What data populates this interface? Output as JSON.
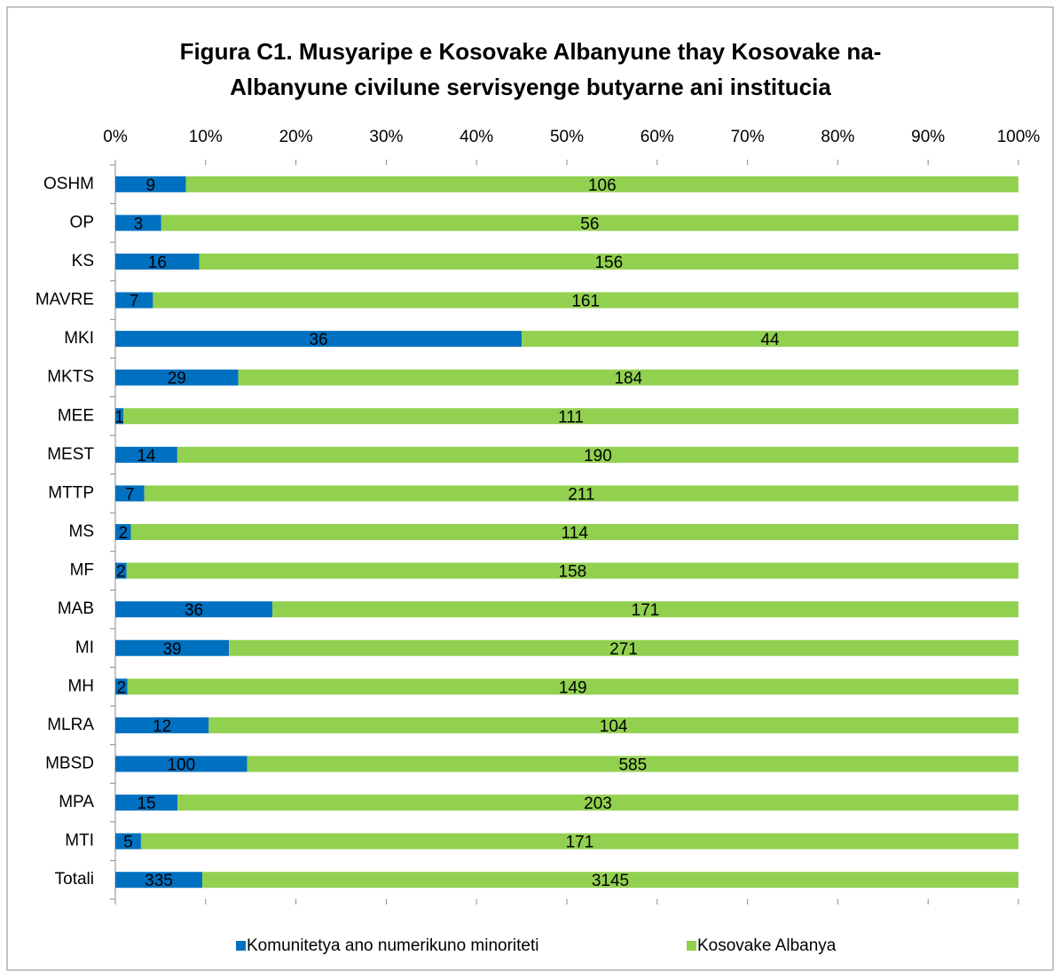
{
  "chart_data": {
    "type": "bar",
    "orientation": "horizontal",
    "stacking": "percent",
    "title": "Figura C1. Musyaripe e Kosovake Albanyune thay Kosovake na-Albanyune civilune servisyenge butyarne ani institucia",
    "categories": [
      "OSHM",
      "OP",
      "KS",
      "MAVRE",
      "MKI",
      "MKTS",
      "MEE",
      "MEST",
      "MTTP",
      "MS",
      "MF",
      "MAB",
      "MI",
      "MH",
      "MLRA",
      "MBSD",
      "MPA",
      "MTI",
      "Totali"
    ],
    "series": [
      {
        "name": "Komunitetya ano numerikuno minoriteti",
        "color": "#0070c0",
        "values": [
          9,
          3,
          16,
          7,
          36,
          29,
          1,
          14,
          7,
          2,
          2,
          36,
          39,
          2,
          12,
          100,
          15,
          5,
          335
        ]
      },
      {
        "name": "Kosovake Albanya",
        "color": "#92d050",
        "values": [
          106,
          56,
          156,
          161,
          44,
          184,
          111,
          190,
          211,
          114,
          158,
          171,
          271,
          149,
          104,
          585,
          203,
          171,
          3145
        ]
      }
    ],
    "xlim": [
      0,
      100
    ],
    "xticks": [
      {
        "value": 0,
        "label": "0%"
      },
      {
        "value": 10,
        "label": "10%"
      },
      {
        "value": 20,
        "label": "20%"
      },
      {
        "value": 30,
        "label": "30%"
      },
      {
        "value": 40,
        "label": "40%"
      },
      {
        "value": 50,
        "label": "50%"
      },
      {
        "value": 60,
        "label": "60%"
      },
      {
        "value": 70,
        "label": "70%"
      },
      {
        "value": 80,
        "label": "80%"
      },
      {
        "value": 90,
        "label": "90%"
      },
      {
        "value": 100,
        "label": "100%"
      }
    ],
    "legend": "bottom"
  }
}
